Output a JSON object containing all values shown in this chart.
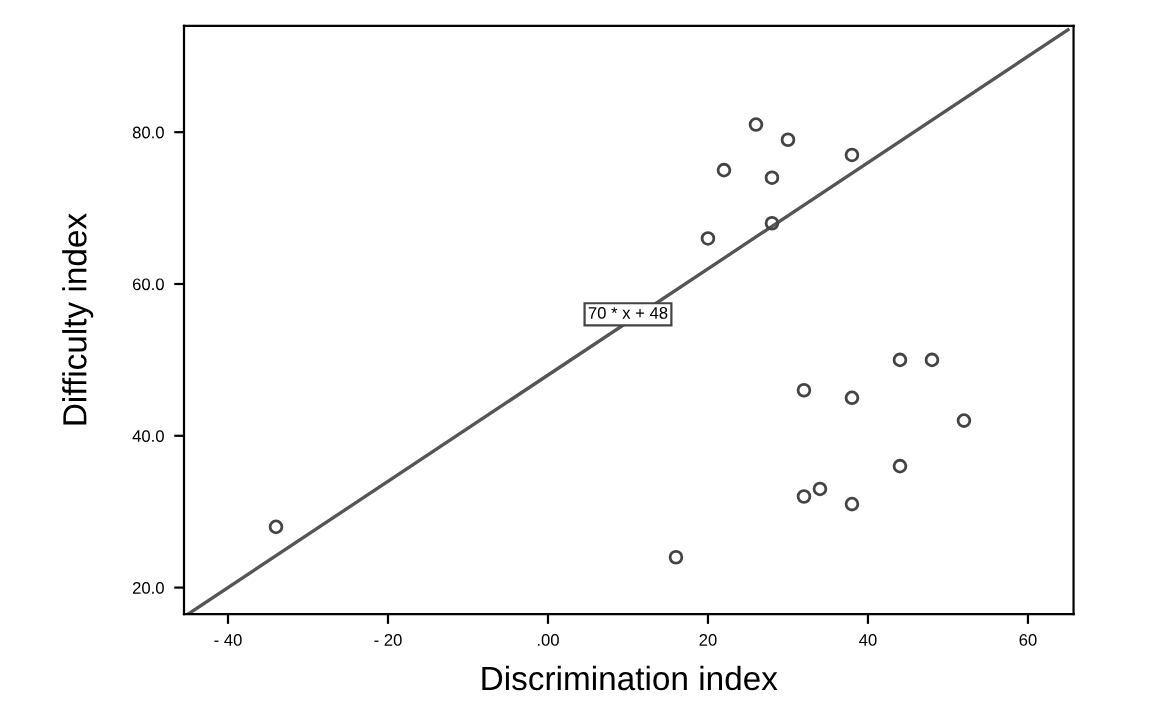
{
  "chart_data": {
    "type": "scatter",
    "xlabel": "Discrimination index",
    "ylabel": "Difficulty index",
    "xlim": [
      -45.5,
      65.7
    ],
    "ylim": [
      16.5,
      94
    ],
    "xticks": [
      {
        "value": -40,
        "label": "- 40"
      },
      {
        "value": -20,
        "label": "- 20"
      },
      {
        "value": 0,
        "label": ".00"
      },
      {
        "value": 20,
        "label": "20"
      },
      {
        "value": 40,
        "label": "40"
      },
      {
        "value": 60,
        "label": "60"
      }
    ],
    "yticks": [
      {
        "value": 20,
        "label": "20.0"
      },
      {
        "value": 40,
        "label": "40.0"
      },
      {
        "value": 60,
        "label": "60.0"
      },
      {
        "value": 80,
        "label": "80.0"
      }
    ],
    "grid": false,
    "legend": false,
    "series": [
      {
        "marker": "circle",
        "color": "#444444",
        "x": [
          -34,
          16,
          20,
          22,
          26,
          30,
          28,
          28,
          38,
          32,
          38,
          44,
          48,
          52,
          44,
          32,
          34,
          38
        ],
        "values": [
          28,
          24,
          66,
          75,
          81,
          79,
          74,
          68,
          77,
          46,
          45,
          50,
          50,
          42,
          36,
          32,
          33,
          31
        ]
      },
      {
        "type": "line",
        "color": "#555555",
        "x": [
          -45,
          65
        ],
        "values": [
          16.5,
          93.5
        ]
      }
    ],
    "annotations": [
      {
        "text": "70 * x + 48",
        "x": 10,
        "y": 56
      }
    ]
  }
}
